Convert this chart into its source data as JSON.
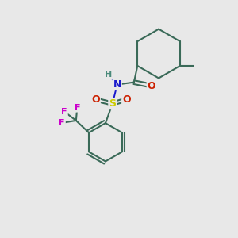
{
  "background_color": "#e8e8e8",
  "bond_color": "#3a6a58",
  "bond_width": 1.5,
  "atom_colors": {
    "N": "#1a1acc",
    "O": "#cc2000",
    "S": "#cccc00",
    "F": "#cc00cc",
    "H": "#4a8a7a",
    "C": "#3a6a58"
  },
  "font_size_atoms": 9,
  "font_size_H": 8,
  "font_size_small": 8
}
